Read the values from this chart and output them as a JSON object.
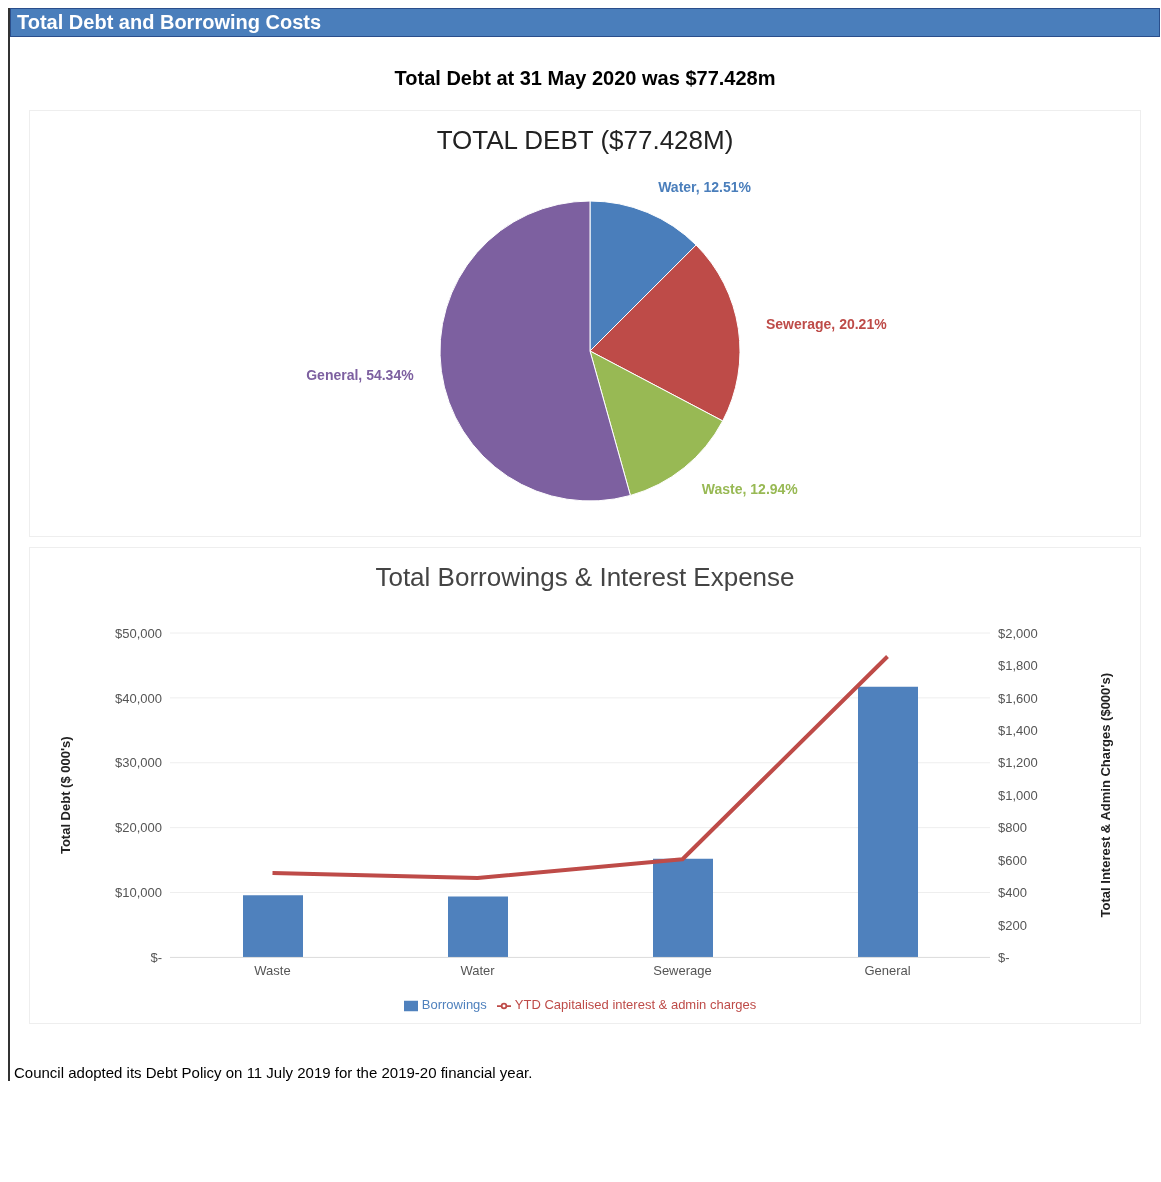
{
  "chart_data": [
    {
      "type": "pie",
      "title": "TOTAL DEBT ($77.428M)",
      "annotations": [
        "Total Debt and Borrowing Costs",
        "Total Debt at 31 May 2020 was $77.428m"
      ],
      "categories": [
        "Water",
        "Sewerage",
        "Waste",
        "General"
      ],
      "values": [
        12.51,
        20.21,
        12.94,
        54.34
      ],
      "colors": [
        "#4a7ebb",
        "#be4b48",
        "#98b954",
        "#7d60a0"
      ],
      "value_labels": [
        "12.51%",
        "20.21%",
        "12.94%",
        "54.34%"
      ],
      "legend": false
    },
    {
      "type": "bar",
      "title": "Total Borrowings & Interest Expense",
      "ylabel": "Total Debt ($ 000's)",
      "y2label": "Total Interest & Admin Charges ($000's)",
      "annotations": [
        "Council adopted its Debt Policy on 11 July 2019 for the 2019-20 financial year."
      ],
      "categories": [
        "Waste",
        "Water",
        "Sewerage",
        "General"
      ],
      "series": [
        {
          "name": "Borrowings",
          "type": "bar",
          "color": "#4f81bd",
          "values": [
            9600,
            9400,
            15200,
            41700
          ]
        },
        {
          "name": "YTD Capitalised interest & admin charges",
          "type": "line",
          "axis": "y2",
          "color": "#be4b48",
          "values": [
            520,
            490,
            605,
            1855
          ]
        }
      ],
      "ylim": [
        0,
        50000
      ],
      "yticks": [
        {
          "value": 0,
          "label": "$-"
        },
        {
          "value": 10000,
          "label": "$10,000"
        },
        {
          "value": 20000,
          "label": "$20,000"
        },
        {
          "value": 30000,
          "label": "$30,000"
        },
        {
          "value": 40000,
          "label": "$40,000"
        },
        {
          "value": 50000,
          "label": "$50,000"
        }
      ],
      "y2lim": [
        0,
        2000
      ],
      "y2ticks": [
        {
          "value": 0,
          "label": "$-"
        },
        {
          "value": 200,
          "label": "$200"
        },
        {
          "value": 400,
          "label": "$400"
        },
        {
          "value": 600,
          "label": "$600"
        },
        {
          "value": 800,
          "label": "$800"
        },
        {
          "value": 1000,
          "label": "$1,000"
        },
        {
          "value": 1200,
          "label": "$1,200"
        },
        {
          "value": 1400,
          "label": "$1,400"
        },
        {
          "value": 1600,
          "label": "$1,600"
        },
        {
          "value": 1800,
          "label": "$1,800"
        },
        {
          "value": 2000,
          "label": "$2,000"
        }
      ],
      "grid": "y",
      "legend": "bottom",
      "marker": "none",
      "line_style": "solid"
    }
  ]
}
